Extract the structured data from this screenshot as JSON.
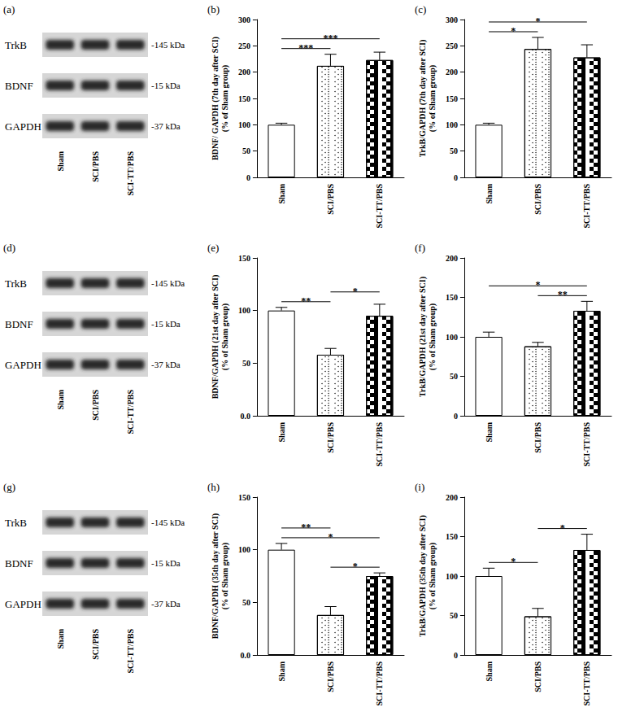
{
  "chart_data": [
    {
      "type": "bar",
      "title": "(b)",
      "ylabel": "BDNF/ GAPDH (7th day after SCI)\n(% of Sham group)",
      "categories": [
        "Sham",
        "SCI/PBS",
        "SCI-TT/PBS"
      ],
      "values": [
        100,
        212,
        223
      ],
      "errors": [
        3,
        22,
        15
      ],
      "colors": [
        "#ffffff",
        "#ffffff",
        "#ffffff"
      ],
      "ylim": [
        0,
        300
      ],
      "yticks": [
        0,
        50,
        100,
        150,
        200,
        250,
        300
      ],
      "grid": false,
      "annotations": [
        {
          "from": "Sham",
          "to": "SCI/PBS",
          "text": "***"
        },
        {
          "from": "Sham",
          "to": "SCI-TT/PBS",
          "text": "***"
        }
      ]
    },
    {
      "type": "bar",
      "title": "(c)",
      "ylabel": "TrkB/GAPDH (7th day after SCI)\n(% of Sham group)",
      "categories": [
        "Sham",
        "SCI/PBS",
        "SCI-TT/PBS"
      ],
      "values": [
        100,
        244,
        228
      ],
      "errors": [
        3,
        22,
        24
      ],
      "colors": [
        "#ffffff",
        "#ffffff",
        "#ffffff"
      ],
      "ylim": [
        0,
        300
      ],
      "yticks": [
        0,
        50,
        100,
        150,
        200,
        250,
        300
      ],
      "grid": false,
      "annotations": [
        {
          "from": "Sham",
          "to": "SCI/PBS",
          "text": "*"
        },
        {
          "from": "Sham",
          "to": "SCI-TT/PBS",
          "text": "*"
        }
      ]
    },
    {
      "type": "bar",
      "title": "(e)",
      "ylabel": "BDNF/GAPDH (21st day after SCI)\n(% of Sham group)",
      "categories": [
        "Sham",
        "SCI/PBS",
        "SCI-TT/PBS"
      ],
      "values": [
        100,
        58,
        95
      ],
      "errors": [
        3,
        6,
        11
      ],
      "colors": [
        "#ffffff",
        "#ffffff",
        "#ffffff"
      ],
      "ylim": [
        0,
        150
      ],
      "yticks": [
        {
          "value": 0,
          "label": "0.0"
        },
        50,
        100,
        150
      ],
      "grid": false,
      "annotations": [
        {
          "from": "Sham",
          "to": "SCI/PBS",
          "text": "**"
        },
        {
          "from": "SCI/PBS",
          "to": "SCI-TT/PBS",
          "text": "*"
        }
      ]
    },
    {
      "type": "bar",
      "title": "(f)",
      "ylabel": "TrkB/GAPDH (21st day after SCI)\n(% of Sham group)",
      "categories": [
        "Sham",
        "SCI/PBS",
        "SCI-TT/PBS"
      ],
      "values": [
        100,
        88,
        133
      ],
      "errors": [
        6,
        5,
        12
      ],
      "colors": [
        "#ffffff",
        "#ffffff",
        "#ffffff"
      ],
      "ylim": [
        0,
        200
      ],
      "yticks": [
        0,
        50,
        100,
        150,
        200
      ],
      "grid": false,
      "annotations": [
        {
          "from": "SCI/PBS",
          "to": "SCI-TT/PBS",
          "text": "**"
        },
        {
          "from": "Sham",
          "to": "SCI-TT/PBS",
          "text": "*"
        }
      ]
    },
    {
      "type": "bar",
      "title": "(h)",
      "ylabel": "BDNF/GAPDH (35th day after SCI)\n(% of Sham group)",
      "categories": [
        "Sham",
        "SCI/PBS",
        "SCI-TT/PBS"
      ],
      "values": [
        100,
        38,
        75
      ],
      "errors": [
        6,
        8,
        3
      ],
      "colors": [
        "#ffffff",
        "#ffffff",
        "#ffffff"
      ],
      "ylim": [
        0,
        150
      ],
      "yticks": [
        {
          "value": 0,
          "label": "0.0"
        },
        50,
        100,
        150
      ],
      "grid": false,
      "annotations": [
        {
          "from": "SCI/PBS",
          "to": "SCI-TT/PBS",
          "text": "*"
        },
        {
          "from": "Sham",
          "to": "SCI-TT/PBS",
          "text": "*"
        },
        {
          "from": "Sham",
          "to": "SCI/PBS",
          "text": "**"
        }
      ]
    },
    {
      "type": "bar",
      "title": "(i)",
      "ylabel": "TrkB/GAPDH (35th day after SCI)\n(% of Sham group)",
      "categories": [
        "Sham",
        "SCI/PBS",
        "SCI-TT/PBS"
      ],
      "values": [
        100,
        49,
        133
      ],
      "errors": [
        10,
        10,
        20
      ],
      "colors": [
        "#ffffff",
        "#ffffff",
        "#ffffff"
      ],
      "ylim": [
        0,
        200
      ],
      "yticks": [
        0,
        50,
        100,
        150,
        200
      ],
      "grid": false,
      "annotations": [
        {
          "from": "Sham",
          "to": "SCI/PBS",
          "text": "*"
        },
        {
          "from": "SCI/PBS",
          "to": "SCI-TT/PBS",
          "text": "*"
        }
      ]
    }
  ],
  "blots": [
    {
      "title": "(a)",
      "rows": [
        "TrkB",
        "BDNF",
        "GAPDH"
      ],
      "sizes": [
        "-145 kDa",
        "-15 kDa",
        "-37 kDa"
      ],
      "lanes": [
        "Sham",
        "SCI/PBS",
        "SCI-TT/PBS"
      ]
    },
    {
      "title": "(d)",
      "rows": [
        "TrkB",
        "BDNF",
        "GAPDH"
      ],
      "sizes": [
        "-145 kDa",
        "-15 kDa",
        "-37 kDa"
      ],
      "lanes": [
        "Sham",
        "SCI/PBS",
        "SCI-TT/PBS"
      ]
    },
    {
      "title": "(g)",
      "rows": [
        "TrkB",
        "BDNF",
        "GAPDH"
      ],
      "sizes": [
        "-145 kDa",
        "-15 kDa",
        "-37 kDa"
      ],
      "lanes": [
        "Sham",
        "SCI/PBS",
        "SCI-TT/PBS"
      ]
    }
  ]
}
